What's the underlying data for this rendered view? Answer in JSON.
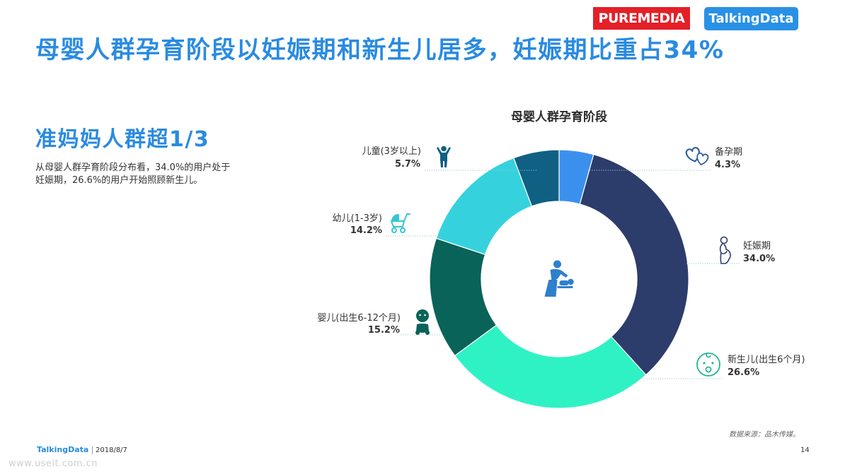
{
  "header": {
    "logos": {
      "puremedia": "PUREMEDIA",
      "talkingdata": "TalkingData"
    },
    "title": "母婴人群孕育阶段以妊娠期和新生儿居多，妊娠期比重占34%"
  },
  "left": {
    "subtitle": "准妈妈人群超1/3",
    "description_lines": [
      "从母婴人群孕育阶段分布看，34.0%的用户处于",
      "妊娠期，26.6%的用户开始照顾新生儿。"
    ]
  },
  "chart_data": {
    "type": "pie",
    "donut": true,
    "title": "母婴人群孕育阶段",
    "categories": [
      "备孕期",
      "妊娠期",
      "新生儿(出生6个月)",
      "婴儿(出生6-12个月)",
      "幼儿(1-3岁)",
      "儿童(3岁以上)"
    ],
    "values": [
      4.3,
      34.0,
      26.6,
      15.2,
      14.2,
      5.7
    ],
    "value_labels": [
      "4.3%",
      "34.0%",
      "26.6%",
      "15.2%",
      "14.2%",
      "5.7%"
    ],
    "colors": [
      "#3b90ee",
      "#2c3d6b",
      "#2ff2c4",
      "#0a6358",
      "#35d2de",
      "#0f6083"
    ],
    "icons": [
      "hearts-icon",
      "pregnant-woman-icon",
      "baby-face-icon",
      "baby-icon",
      "stroller-icon",
      "child-icon"
    ],
    "center_icon": "baby-changing-icon"
  },
  "footer": {
    "brand": "TalkingData",
    "date": "2018/8/7",
    "source": "数据来源：品木传媒。",
    "page_number": "14",
    "watermark": "www.useit.com.cn"
  }
}
